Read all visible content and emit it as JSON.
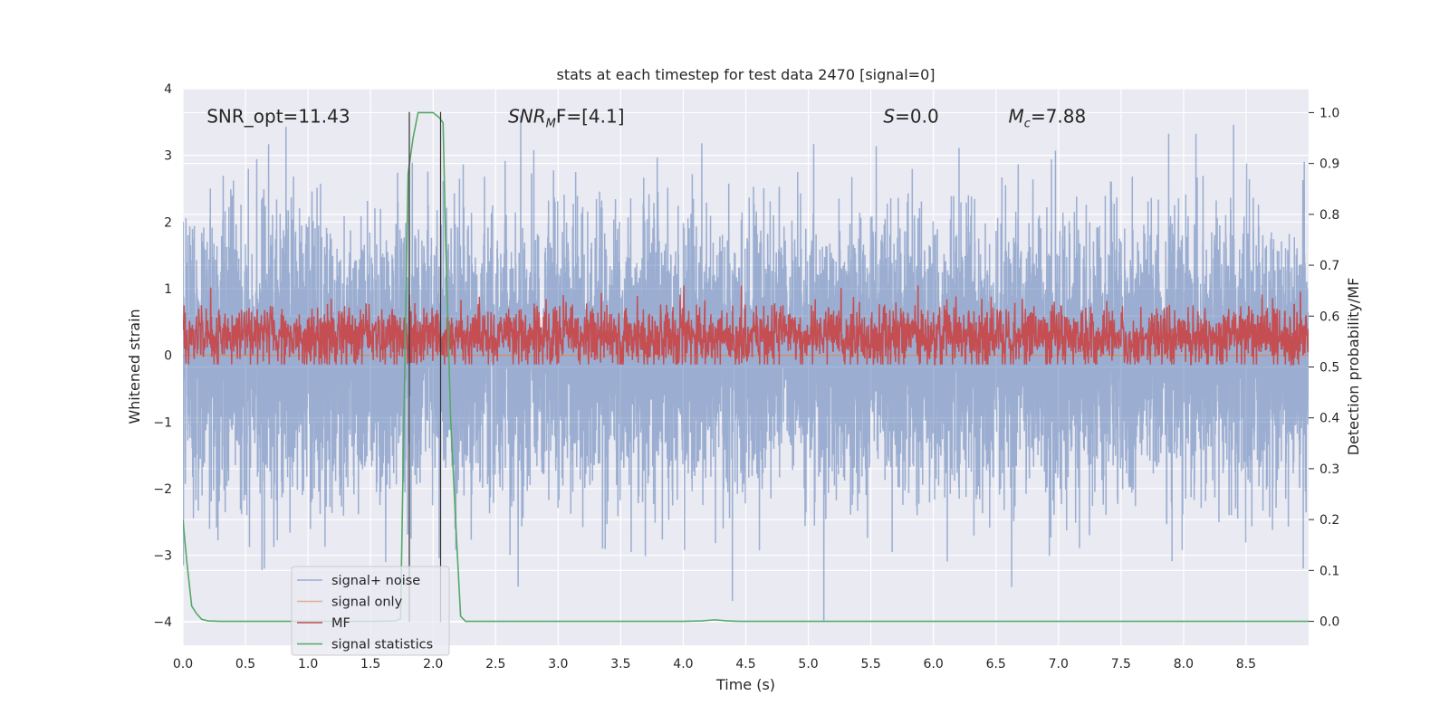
{
  "chart_data": {
    "type": "line",
    "title": "stats at each timestep for test data 2470 [signal=0]",
    "xlabel": "Time (s)",
    "ylabel_left": "Whitened strain",
    "ylabel_right": "Detection probability/MF",
    "xlim": [
      0.0,
      9.0
    ],
    "ylim_left": [
      -4.35,
      4.0
    ],
    "ylim_right": [
      -0.047,
      1.047
    ],
    "x_ticks": [
      0.0,
      0.5,
      1.0,
      1.5,
      2.0,
      2.5,
      3.0,
      3.5,
      4.0,
      4.5,
      5.0,
      5.5,
      6.0,
      6.5,
      7.0,
      7.5,
      8.0,
      8.5
    ],
    "x_tick_labels": [
      "0.0",
      "0.5",
      "1.0",
      "1.5",
      "2.0",
      "2.5",
      "3.0",
      "3.5",
      "4.0",
      "4.5",
      "5.0",
      "5.5",
      "6.0",
      "6.5",
      "7.0",
      "7.5",
      "8.0",
      "8.5"
    ],
    "y_left_ticks": [
      4,
      3,
      2,
      1,
      0,
      -1,
      -2,
      -3,
      -4
    ],
    "y_left_tick_labels": [
      "4",
      "3",
      "2",
      "1",
      "0",
      "−1",
      "−2",
      "−3",
      "−4"
    ],
    "y_right_ticks": [
      1.0,
      0.9,
      0.8,
      0.7,
      0.6,
      0.5,
      0.4,
      0.3,
      0.2,
      0.1,
      0.0
    ],
    "y_right_tick_labels": [
      "1.0",
      "0.9",
      "0.8",
      "0.7",
      "0.6",
      "0.5",
      "0.4",
      "0.3",
      "0.2",
      "0.1",
      "0.0"
    ],
    "grid": true,
    "legend_placement": "lower-left",
    "annotations": [
      {
        "text": "SNR_opt=11.43",
        "x": 0.19,
        "y": 3.6,
        "italic": false
      },
      {
        "text": "SNR",
        "sub": "M",
        "rest": "F=[4.1]",
        "x": 2.6,
        "y": 3.6,
        "italic": true
      },
      {
        "text": "S",
        "rest": "=0.0",
        "x": 5.6,
        "y": 3.6,
        "italic": true
      },
      {
        "text": "M",
        "sub": "c",
        "rest": "=7.88",
        "x": 6.6,
        "y": 3.6,
        "italic": true
      }
    ],
    "vertical_lines": [
      {
        "x": 1.81,
        "y_top": 3.65,
        "y_bottom": -4.0
      },
      {
        "x": 2.06,
        "y_top": 3.65,
        "y_bottom": -4.0
      }
    ],
    "series": [
      {
        "name": "signal+ noise",
        "color": "#4c72b0",
        "axis": "left",
        "style": "noise",
        "sigma": 1.0,
        "duration": 9.0,
        "sample_count": 9000
      },
      {
        "name": "signal only",
        "color": "#dd8452",
        "axis": "left",
        "style": "flat",
        "values": [
          [
            0.0,
            0.0
          ],
          [
            9.0,
            0.0
          ]
        ]
      },
      {
        "name": "MF",
        "color": "#c44e52",
        "axis": "right",
        "style": "mf-noise",
        "baseline": 0.56,
        "spread": 0.03
      },
      {
        "name": "signal statistics",
        "color": "#55a868",
        "axis": "right",
        "style": "line",
        "values": [
          [
            0.0,
            0.2
          ],
          [
            0.03,
            0.12
          ],
          [
            0.07,
            0.03
          ],
          [
            0.11,
            0.015
          ],
          [
            0.15,
            0.004
          ],
          [
            0.2,
            0.001
          ],
          [
            0.3,
            0.0
          ],
          [
            1.0,
            0.0
          ],
          [
            1.5,
            0.0
          ],
          [
            1.7,
            0.001
          ],
          [
            1.74,
            0.005
          ],
          [
            1.76,
            0.3
          ],
          [
            1.8,
            0.88
          ],
          [
            1.84,
            0.95
          ],
          [
            1.88,
            1.0
          ],
          [
            1.9,
            1.0
          ],
          [
            2.0,
            1.0
          ],
          [
            2.05,
            0.99
          ],
          [
            2.08,
            0.98
          ],
          [
            2.1,
            0.75
          ],
          [
            2.14,
            0.4
          ],
          [
            2.19,
            0.15
          ],
          [
            2.22,
            0.01
          ],
          [
            2.26,
            0.0
          ],
          [
            2.5,
            0.0
          ],
          [
            4.0,
            0.0
          ],
          [
            4.15,
            0.001
          ],
          [
            4.25,
            0.003
          ],
          [
            4.35,
            0.001
          ],
          [
            4.45,
            0.0
          ],
          [
            9.0,
            0.0
          ]
        ]
      }
    ]
  }
}
